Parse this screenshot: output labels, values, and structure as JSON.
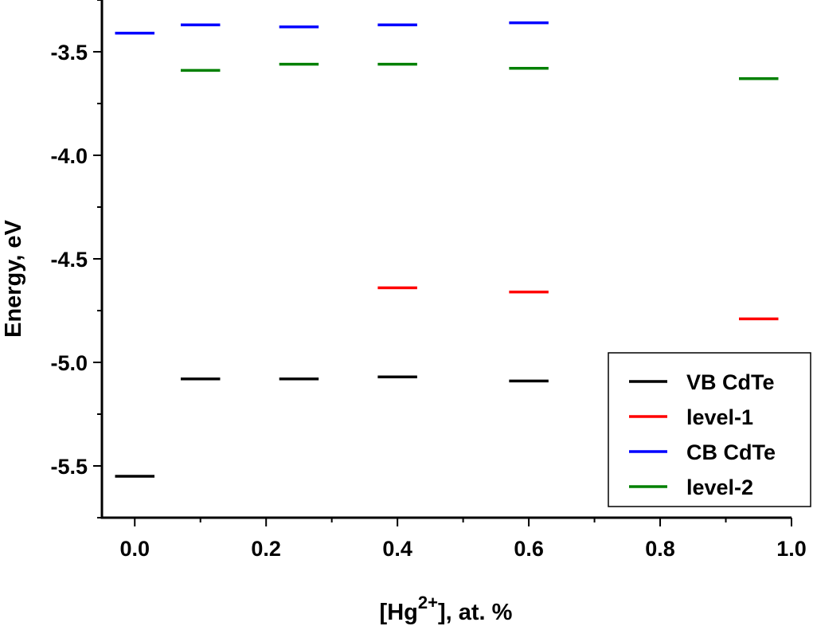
{
  "chart_data": {
    "type": "scatter",
    "title": "",
    "xlabel": {
      "prefix": "[Hg",
      "sup": "2+",
      "suffix": "], at. %"
    },
    "ylabel": "Energy, eV",
    "xlim": [
      -0.05,
      1.0
    ],
    "ylim": [
      -5.75,
      -3.25
    ],
    "xticks": [
      0.0,
      0.2,
      0.4,
      0.6,
      0.8,
      1.0
    ],
    "xtick_labels": [
      "0.0",
      "0.2",
      "0.4",
      "0.6",
      "0.8",
      "1.0"
    ],
    "yticks": [
      -3.5,
      -4.0,
      -4.5,
      -5.0,
      -5.5
    ],
    "ytick_labels": [
      "-3.5",
      "-4.0",
      "-4.5",
      "-5.0",
      "-5.5"
    ],
    "grid": false,
    "legend_position": "bottom-right",
    "marker": "horizontal-dash",
    "series": [
      {
        "name": "VB CdTe",
        "color": "#000000",
        "points": [
          {
            "x": 0.0,
            "y": -5.55
          },
          {
            "x": 0.1,
            "y": -5.08
          },
          {
            "x": 0.25,
            "y": -5.08
          },
          {
            "x": 0.4,
            "y": -5.07
          },
          {
            "x": 0.6,
            "y": -5.09
          }
        ]
      },
      {
        "name": "level-1",
        "color": "#ff0000",
        "points": [
          {
            "x": 0.4,
            "y": -4.64
          },
          {
            "x": 0.6,
            "y": -4.66
          },
          {
            "x": 0.95,
            "y": -4.79
          }
        ]
      },
      {
        "name": "CB CdTe",
        "color": "#0000ff",
        "points": [
          {
            "x": 0.0,
            "y": -3.41
          },
          {
            "x": 0.1,
            "y": -3.37
          },
          {
            "x": 0.25,
            "y": -3.38
          },
          {
            "x": 0.4,
            "y": -3.37
          },
          {
            "x": 0.6,
            "y": -3.36
          }
        ]
      },
      {
        "name": "level-2",
        "color": "#008000",
        "points": [
          {
            "x": 0.1,
            "y": -3.59
          },
          {
            "x": 0.25,
            "y": -3.56
          },
          {
            "x": 0.4,
            "y": -3.56
          },
          {
            "x": 0.6,
            "y": -3.58
          },
          {
            "x": 0.95,
            "y": -3.63
          }
        ]
      }
    ]
  }
}
